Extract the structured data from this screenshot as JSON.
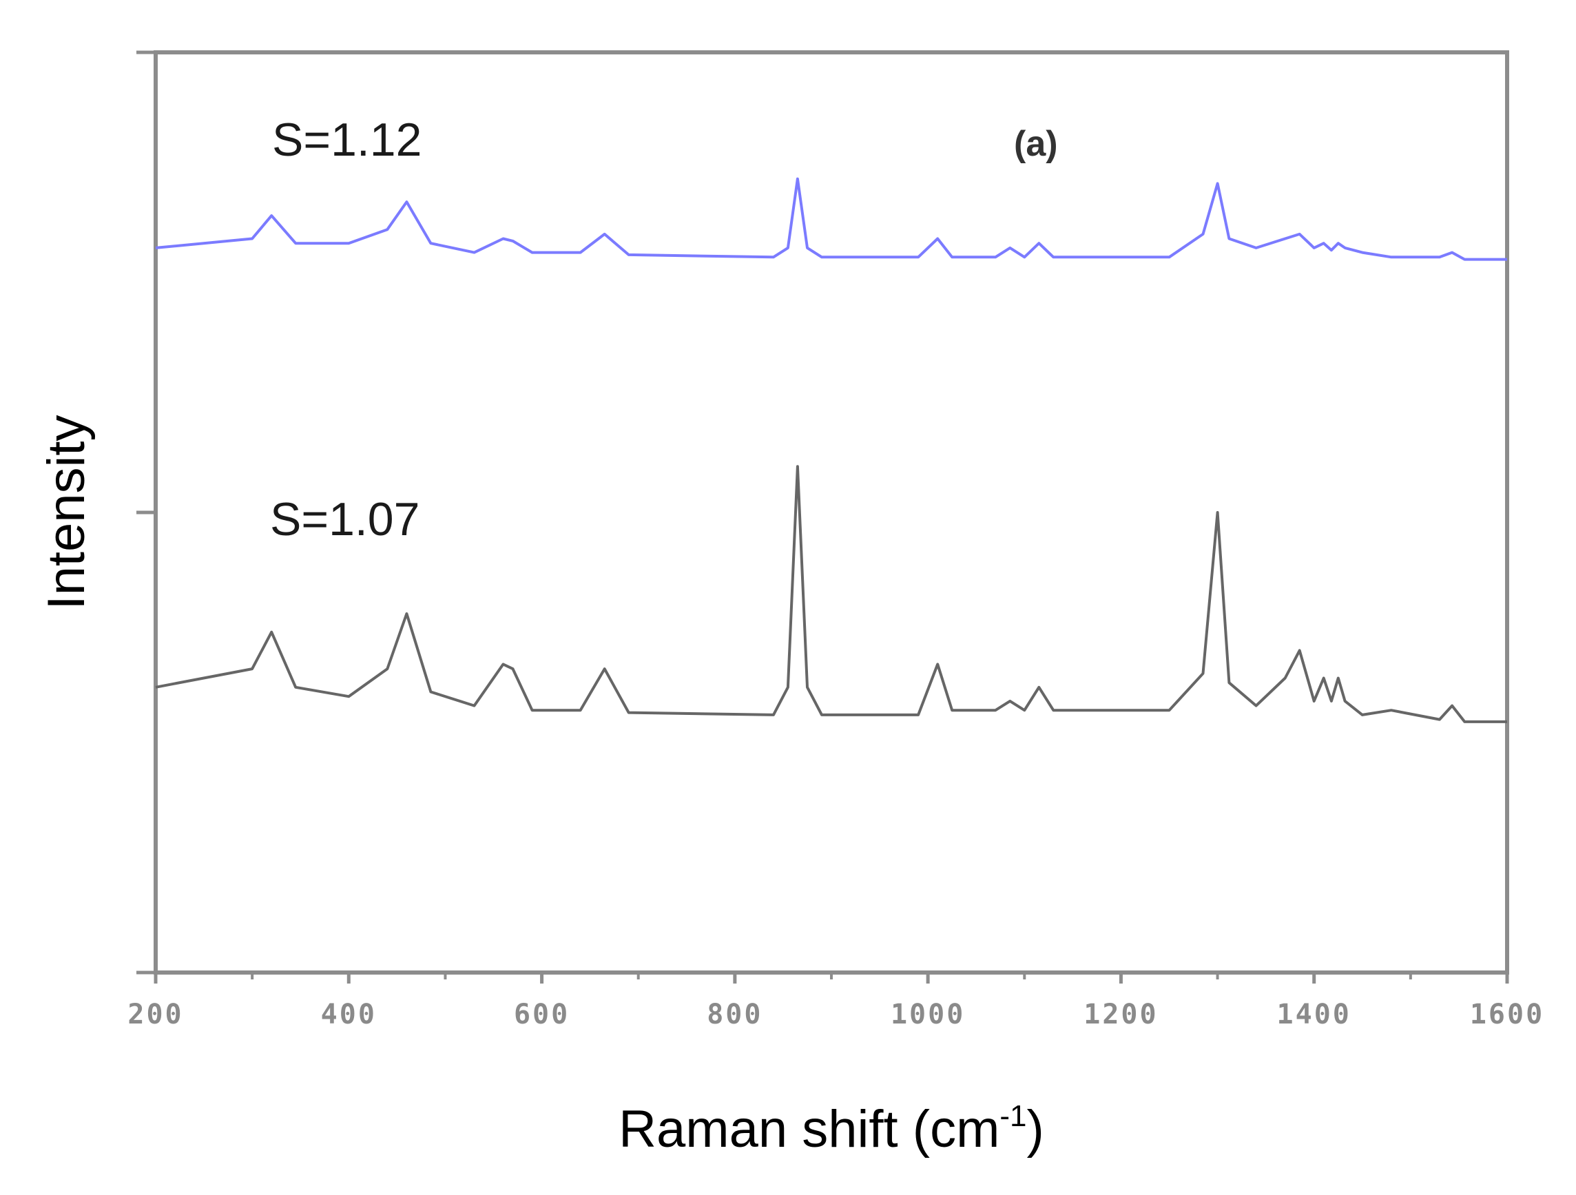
{
  "chart_data": {
    "type": "line",
    "title": "",
    "panel_label": "(a)",
    "xlabel": "Raman shift (cm",
    "xlabel_sup": "-1",
    "xlabel_close": ")",
    "ylabel": "Intensity",
    "xlim": [
      200,
      1600
    ],
    "ylim": [
      0,
      2
    ],
    "y_ticks_labeled": false,
    "grid": false,
    "legend": "none",
    "x_ticks": [
      "200",
      "400",
      "600",
      "800",
      "1000",
      "1200",
      "1400",
      "1600"
    ],
    "series": [
      {
        "label": "S=1.12",
        "color": "#7b7bff",
        "offset": 1.575,
        "x": [
          200,
          300,
          320,
          345,
          400,
          440,
          460,
          485,
          530,
          560,
          570,
          590,
          640,
          665,
          690,
          840,
          855,
          865,
          875,
          890,
          990,
          1010,
          1025,
          1070,
          1085,
          1100,
          1115,
          1130,
          1250,
          1285,
          1300,
          1312,
          1340,
          1370,
          1385,
          1400,
          1410,
          1418,
          1425,
          1432,
          1450,
          1480,
          1530,
          1543,
          1556,
          1600
        ],
        "values": [
          0.0,
          0.02,
          0.07,
          0.01,
          0.01,
          0.04,
          0.1,
          0.01,
          -0.01,
          0.02,
          0.015,
          -0.01,
          -0.01,
          0.03,
          -0.015,
          -0.02,
          0.0,
          0.15,
          0.0,
          -0.02,
          -0.02,
          0.02,
          -0.02,
          -0.02,
          0.0,
          -0.02,
          0.01,
          -0.02,
          -0.02,
          0.03,
          0.14,
          0.02,
          0.0,
          0.02,
          0.03,
          0.0,
          0.01,
          -0.005,
          0.01,
          0.0,
          -0.01,
          -0.02,
          -0.02,
          -0.01,
          -0.025,
          -0.025
        ]
      },
      {
        "label": "S=1.07",
        "color": "#666666",
        "offset": 0.62,
        "x": [
          200,
          300,
          320,
          345,
          400,
          440,
          460,
          485,
          530,
          560,
          570,
          590,
          640,
          665,
          690,
          840,
          855,
          865,
          875,
          890,
          990,
          1010,
          1025,
          1070,
          1085,
          1100,
          1115,
          1130,
          1250,
          1285,
          1300,
          1312,
          1340,
          1370,
          1385,
          1400,
          1410,
          1418,
          1425,
          1432,
          1450,
          1480,
          1530,
          1543,
          1556,
          1600
        ],
        "values": [
          0.0,
          0.04,
          0.12,
          0.0,
          -0.02,
          0.04,
          0.16,
          -0.01,
          -0.04,
          0.05,
          0.04,
          -0.05,
          -0.05,
          0.04,
          -0.055,
          -0.06,
          0.0,
          0.48,
          0.0,
          -0.06,
          -0.06,
          0.05,
          -0.05,
          -0.05,
          -0.03,
          -0.05,
          0.0,
          -0.05,
          -0.05,
          0.03,
          0.38,
          0.01,
          -0.04,
          0.02,
          0.08,
          -0.03,
          0.02,
          -0.03,
          0.02,
          -0.03,
          -0.06,
          -0.05,
          -0.07,
          -0.04,
          -0.075,
          -0.075
        ]
      }
    ]
  }
}
